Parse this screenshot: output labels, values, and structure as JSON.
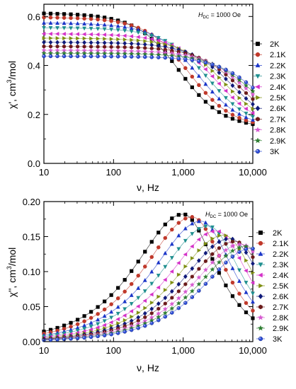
{
  "chart_data": [
    {
      "type": "scatter",
      "panel": "top",
      "xscale": "log",
      "xlim": [
        10,
        10000
      ],
      "ylim": [
        0.0,
        0.65
      ],
      "xlabel": "ν, Hz",
      "ylabel": "χ′, cm³/mol",
      "annotation": "H_DC = 1000 Oe",
      "xticks": [
        "10",
        "100",
        "1,000",
        "10,000"
      ],
      "yticks": [
        "0.0",
        "0.2",
        "0.4",
        "0.6"
      ],
      "legend_position": "right",
      "fitted_lines": true,
      "series": [
        {
          "name": "2K",
          "marker": "square",
          "color": "#000000",
          "chi0": 0.615,
          "chiS": 0.14,
          "tau": 0.00018
        },
        {
          "name": "2.1K",
          "marker": "circle",
          "color": "#c0392b",
          "chi0": 0.598,
          "chiS": 0.14,
          "tau": 0.00013
        },
        {
          "name": "2.2K",
          "marker": "triangle-up",
          "color": "#1a35c8",
          "chi0": 0.575,
          "chiS": 0.14,
          "tau": 9.5e-05
        },
        {
          "name": "2.3K",
          "marker": "triangle-down",
          "color": "#1f8f8f",
          "chi0": 0.555,
          "chiS": 0.14,
          "tau": 7e-05
        },
        {
          "name": "2.4K",
          "marker": "triangle-left",
          "color": "#d431c8",
          "chi0": 0.53,
          "chiS": 0.14,
          "tau": 5.2e-05
        },
        {
          "name": "2.5K",
          "marker": "triangle-right",
          "color": "#7f8f12",
          "chi0": 0.512,
          "chiS": 0.14,
          "tau": 4e-05
        },
        {
          "name": "2.6K",
          "marker": "diamond",
          "color": "#0f1a7a",
          "chi0": 0.495,
          "chiS": 0.14,
          "tau": 3.1e-05
        },
        {
          "name": "2.7K",
          "marker": "hexagon",
          "color": "#6b1a1a",
          "chi0": 0.478,
          "chiS": 0.14,
          "tau": 2.4e-05
        },
        {
          "name": "2.8K",
          "marker": "star",
          "color": "#d65ad0",
          "chi0": 0.462,
          "chiS": 0.14,
          "tau": 1.9e-05
        },
        {
          "name": "2.9K",
          "marker": "star",
          "color": "#2e7d32",
          "chi0": 0.45,
          "chiS": 0.14,
          "tau": 1.6e-05
        },
        {
          "name": "3K",
          "marker": "sphere",
          "color": "#2f4fd8",
          "chi0": 0.438,
          "chiS": 0.14,
          "tau": 1.3e-05
        }
      ]
    },
    {
      "type": "scatter",
      "panel": "bottom",
      "xscale": "log",
      "xlim": [
        10,
        10000
      ],
      "ylim": [
        0.0,
        0.2
      ],
      "xlabel": "ν, Hz",
      "ylabel": "χ″, cm³/mol",
      "annotation": "H_DC = 1000 Oe",
      "xticks": [
        "10",
        "100",
        "1,000",
        "10,000"
      ],
      "yticks": [
        "0.00",
        "0.05",
        "0.10",
        "0.15",
        "0.20"
      ],
      "legend_position": "right",
      "fitted_lines": true,
      "series": [
        {
          "name": "2K",
          "marker": "square",
          "color": "#000000",
          "peak_freq_hz": 1000,
          "peak_chi": 0.182
        },
        {
          "name": "2.1K",
          "marker": "circle",
          "color": "#c0392b",
          "peak_freq_hz": 1350,
          "peak_chi": 0.178
        },
        {
          "name": "2.2K",
          "marker": "triangle-up",
          "color": "#1a35c8",
          "peak_freq_hz": 1800,
          "peak_chi": 0.172
        },
        {
          "name": "2.3K",
          "marker": "triangle-down",
          "color": "#1f8f8f",
          "peak_freq_hz": 2300,
          "peak_chi": 0.165
        },
        {
          "name": "2.4K",
          "marker": "triangle-left",
          "color": "#d431c8",
          "peak_freq_hz": 3000,
          "peak_chi": 0.158
        },
        {
          "name": "2.5K",
          "marker": "triangle-right",
          "color": "#7f8f12",
          "peak_freq_hz": 3800,
          "peak_chi": 0.152
        },
        {
          "name": "2.6K",
          "marker": "diamond",
          "color": "#0f1a7a",
          "peak_freq_hz": 4700,
          "peak_chi": 0.147
        },
        {
          "name": "2.7K",
          "marker": "hexagon",
          "color": "#6b1a1a",
          "peak_freq_hz": 5600,
          "peak_chi": 0.143
        },
        {
          "name": "2.8K",
          "marker": "star",
          "color": "#d65ad0",
          "peak_freq_hz": 6800,
          "peak_chi": 0.139
        },
        {
          "name": "2.9K",
          "marker": "star",
          "color": "#2e7d32",
          "peak_freq_hz": 8000,
          "peak_chi": 0.136
        },
        {
          "name": "3K",
          "marker": "sphere",
          "color": "#2f4fd8",
          "peak_freq_hz": 9500,
          "peak_chi": 0.133
        }
      ]
    }
  ],
  "text": {
    "annotation_prefix": "H",
    "annotation_sub": "DC",
    "annotation_suffix": " = 1000 Oe",
    "top_xlabel": "ν, Hz",
    "bottom_xlabel": "ν, Hz",
    "top_ylabel_main": "χ', cm",
    "top_ylabel_sup": "3",
    "top_ylabel_tail": "/mol",
    "bottom_ylabel_main": "χ'', cm",
    "bottom_ylabel_sup": "3",
    "bottom_ylabel_tail": "/mol"
  }
}
